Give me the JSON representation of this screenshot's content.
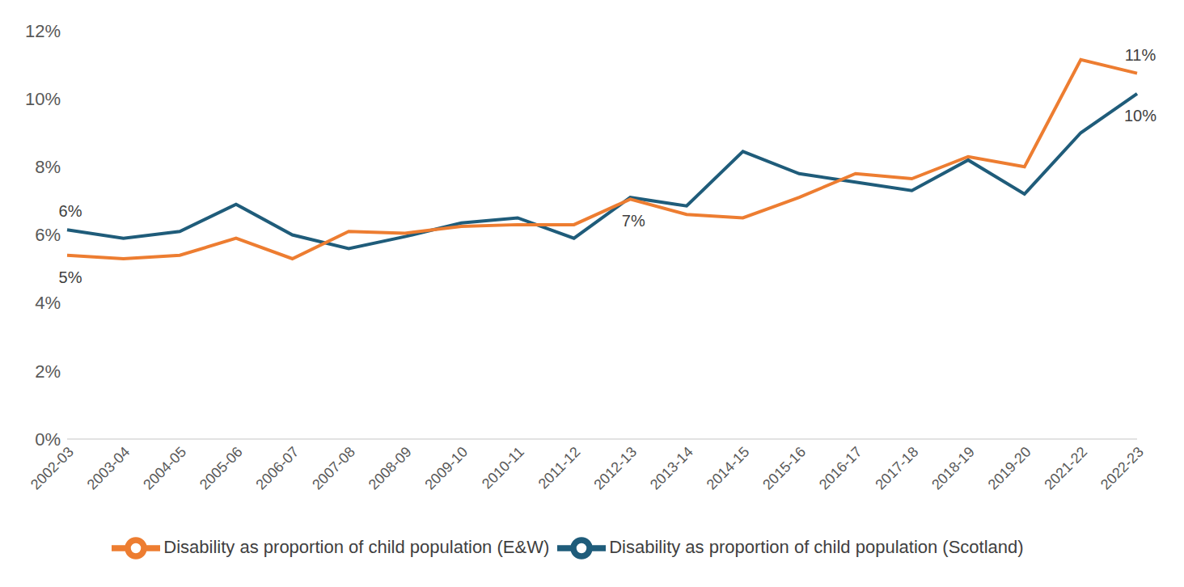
{
  "chart_data": {
    "type": "line",
    "categories": [
      "2002-03",
      "2003-04",
      "2004-05",
      "2005-06",
      "2006-07",
      "2007-08",
      "2008-09",
      "2009-10",
      "2010-11",
      "2011-12",
      "2012-13",
      "2013-14",
      "2014-15",
      "2015-16",
      "2016-17",
      "2017-18",
      "2018-19",
      "2019-20",
      "2021-22",
      "2022-23"
    ],
    "series": [
      {
        "name": "Disability as proportion of child population (Scotland)",
        "color": "#1F5C7A",
        "values": [
          6.15,
          5.9,
          6.1,
          6.9,
          6.0,
          5.6,
          5.95,
          6.35,
          6.5,
          5.9,
          7.1,
          6.85,
          8.45,
          7.8,
          7.55,
          7.3,
          8.2,
          7.2,
          9.0,
          10.15
        ]
      },
      {
        "name": "Disability as proportion of child population (E&W)",
        "color": "#ED7D31",
        "values": [
          5.4,
          5.3,
          5.4,
          5.9,
          5.3,
          6.1,
          6.05,
          6.25,
          6.3,
          6.3,
          7.05,
          6.6,
          6.5,
          7.1,
          7.8,
          7.65,
          8.3,
          8.0,
          11.15,
          10.75
        ]
      }
    ],
    "ylim": [
      0,
      12
    ],
    "yticks": [
      {
        "value": 0,
        "label": "0%"
      },
      {
        "value": 2,
        "label": "2%"
      },
      {
        "value": 4,
        "label": "4%"
      },
      {
        "value": 6,
        "label": "6%"
      },
      {
        "value": 8,
        "label": "8%"
      },
      {
        "value": 10,
        "label": "10%"
      },
      {
        "value": 12,
        "label": "12%"
      }
    ],
    "grid": false,
    "legend": "bottom",
    "annotations": [
      {
        "text": "6%",
        "category": "2002-03",
        "series": "Disability as proportion of child population (Scotland)"
      },
      {
        "text": "5%",
        "category": "2002-03",
        "series": "Disability as proportion of child population (E&W)"
      },
      {
        "text": "7%",
        "category": "2012-13",
        "series": "Disability as proportion of child population (E&W)"
      },
      {
        "text": "11%",
        "category": "2022-23",
        "series": "Disability as proportion of child population (E&W)"
      },
      {
        "text": "10%",
        "category": "2022-23",
        "series": "Disability as proportion of child population (Scotland)"
      }
    ]
  }
}
